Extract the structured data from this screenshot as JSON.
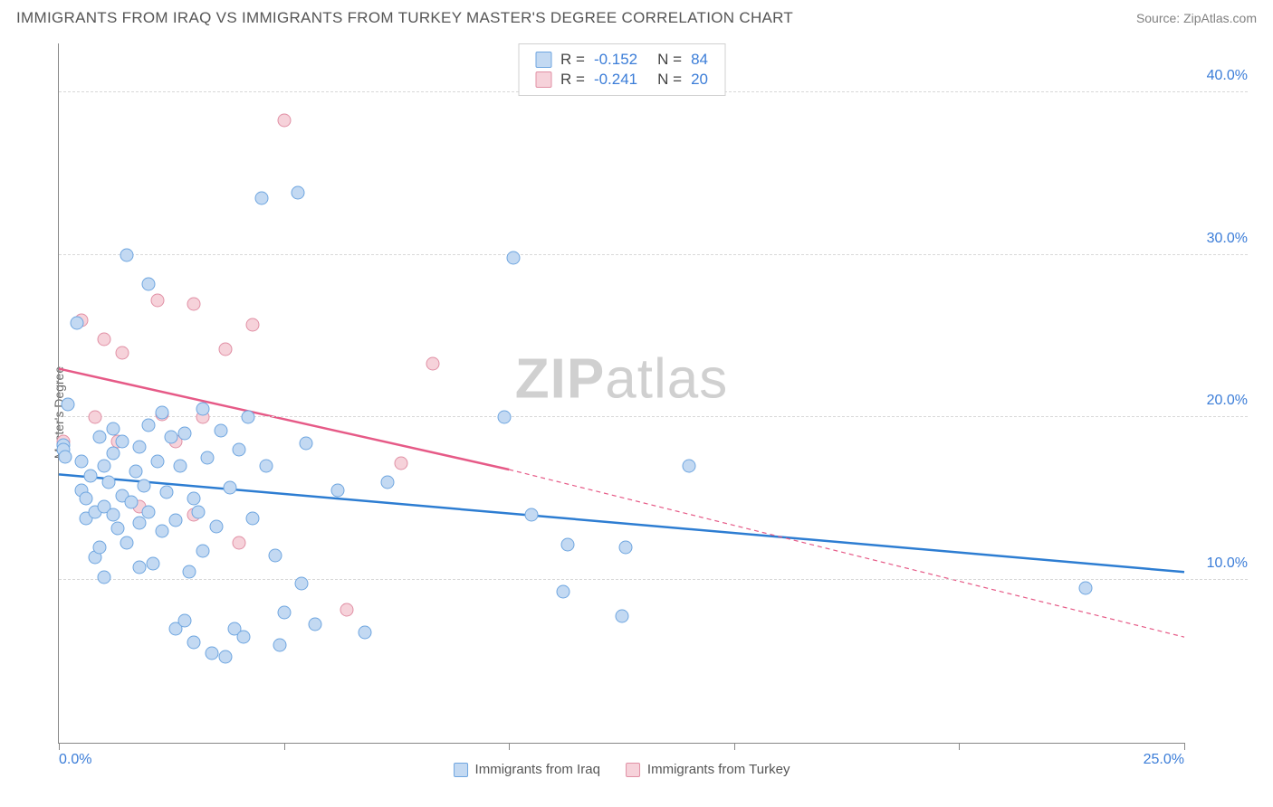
{
  "header": {
    "title": "IMMIGRANTS FROM IRAQ VS IMMIGRANTS FROM TURKEY MASTER'S DEGREE CORRELATION CHART",
    "source": "Source: ZipAtlas.com"
  },
  "ylabel": "Master's Degree",
  "watermark": {
    "zip": "ZIP",
    "atlas": "atlas"
  },
  "colors": {
    "series1_fill": "#c3d9f2",
    "series1_border": "#6fa6e0",
    "series2_fill": "#f6d2da",
    "series2_border": "#e190a5",
    "line1": "#2d7dd2",
    "line2": "#e65a87",
    "grid": "#d8d8d8",
    "axis": "#888888",
    "tick_text": "#3b7dd8"
  },
  "axes": {
    "xlim": [
      0,
      25
    ],
    "ylim": [
      0,
      43
    ],
    "x_ticks": [
      0,
      5,
      10,
      15,
      20,
      25
    ],
    "x_tick_labels": [
      "0.0%",
      "",
      "",
      "",
      "",
      "25.0%"
    ],
    "y_ticks": [
      10,
      20,
      30,
      40
    ],
    "y_tick_labels": [
      "10.0%",
      "20.0%",
      "30.0%",
      "40.0%"
    ]
  },
  "legend_top": {
    "rows": [
      {
        "swatch": "series1",
        "r_label": "R =",
        "r_val": "-0.152",
        "n_label": "N =",
        "n_val": "84"
      },
      {
        "swatch": "series2",
        "r_label": "R =",
        "r_val": "-0.241",
        "n_label": "N =",
        "n_val": "20"
      }
    ]
  },
  "legend_bottom": {
    "items": [
      {
        "swatch": "series1",
        "label": "Immigrants from Iraq"
      },
      {
        "swatch": "series2",
        "label": "Immigrants from Turkey"
      }
    ]
  },
  "trend_lines": {
    "series1": {
      "x1": 0,
      "y1": 16.5,
      "x2": 25,
      "y2": 10.5,
      "dash_from": 25
    },
    "series2": {
      "x1": 0,
      "y1": 23,
      "x2": 10,
      "y2": 16.8,
      "dash_to_x": 25,
      "dash_to_y": 6.5
    }
  },
  "series1_points": [
    {
      "x": 0.1,
      "y": 18.3
    },
    {
      "x": 0.1,
      "y": 18.0
    },
    {
      "x": 0.15,
      "y": 17.6
    },
    {
      "x": 0.2,
      "y": 20.8
    },
    {
      "x": 0.4,
      "y": 25.8
    },
    {
      "x": 0.5,
      "y": 17.3
    },
    {
      "x": 0.5,
      "y": 15.5
    },
    {
      "x": 0.6,
      "y": 15.0
    },
    {
      "x": 0.6,
      "y": 13.8
    },
    {
      "x": 0.7,
      "y": 16.4
    },
    {
      "x": 0.8,
      "y": 11.4
    },
    {
      "x": 0.8,
      "y": 14.2
    },
    {
      "x": 0.9,
      "y": 18.8
    },
    {
      "x": 0.9,
      "y": 12.0
    },
    {
      "x": 1.0,
      "y": 17.0
    },
    {
      "x": 1.0,
      "y": 14.5
    },
    {
      "x": 1.0,
      "y": 10.2
    },
    {
      "x": 1.1,
      "y": 16.0
    },
    {
      "x": 1.2,
      "y": 19.3
    },
    {
      "x": 1.2,
      "y": 14.0
    },
    {
      "x": 1.2,
      "y": 17.8
    },
    {
      "x": 1.3,
      "y": 13.2
    },
    {
      "x": 1.4,
      "y": 15.2
    },
    {
      "x": 1.4,
      "y": 18.5
    },
    {
      "x": 1.5,
      "y": 30.0
    },
    {
      "x": 1.5,
      "y": 12.3
    },
    {
      "x": 1.6,
      "y": 14.8
    },
    {
      "x": 1.7,
      "y": 16.7
    },
    {
      "x": 1.8,
      "y": 18.2
    },
    {
      "x": 1.8,
      "y": 13.5
    },
    {
      "x": 1.8,
      "y": 10.8
    },
    {
      "x": 1.9,
      "y": 15.8
    },
    {
      "x": 2.0,
      "y": 28.2
    },
    {
      "x": 2.0,
      "y": 19.5
    },
    {
      "x": 2.0,
      "y": 14.2
    },
    {
      "x": 2.1,
      "y": 11.0
    },
    {
      "x": 2.2,
      "y": 17.3
    },
    {
      "x": 2.3,
      "y": 13.0
    },
    {
      "x": 2.3,
      "y": 20.3
    },
    {
      "x": 2.4,
      "y": 15.4
    },
    {
      "x": 2.5,
      "y": 18.8
    },
    {
      "x": 2.6,
      "y": 13.7
    },
    {
      "x": 2.6,
      "y": 7.0
    },
    {
      "x": 2.7,
      "y": 17.0
    },
    {
      "x": 2.8,
      "y": 7.5
    },
    {
      "x": 2.8,
      "y": 19.0
    },
    {
      "x": 2.9,
      "y": 10.5
    },
    {
      "x": 3.0,
      "y": 15.0
    },
    {
      "x": 3.0,
      "y": 6.2
    },
    {
      "x": 3.1,
      "y": 14.2
    },
    {
      "x": 3.2,
      "y": 20.5
    },
    {
      "x": 3.2,
      "y": 11.8
    },
    {
      "x": 3.3,
      "y": 17.5
    },
    {
      "x": 3.4,
      "y": 5.5
    },
    {
      "x": 3.5,
      "y": 13.3
    },
    {
      "x": 3.6,
      "y": 19.2
    },
    {
      "x": 3.7,
      "y": 5.3
    },
    {
      "x": 3.8,
      "y": 15.7
    },
    {
      "x": 3.9,
      "y": 7.0
    },
    {
      "x": 4.0,
      "y": 18.0
    },
    {
      "x": 4.1,
      "y": 6.5
    },
    {
      "x": 4.2,
      "y": 20.0
    },
    {
      "x": 4.3,
      "y": 13.8
    },
    {
      "x": 4.5,
      "y": 33.5
    },
    {
      "x": 4.6,
      "y": 17.0
    },
    {
      "x": 4.8,
      "y": 11.5
    },
    {
      "x": 4.9,
      "y": 6.0
    },
    {
      "x": 5.0,
      "y": 8.0
    },
    {
      "x": 5.3,
      "y": 33.8
    },
    {
      "x": 5.4,
      "y": 9.8
    },
    {
      "x": 5.5,
      "y": 18.4
    },
    {
      "x": 5.7,
      "y": 7.3
    },
    {
      "x": 6.2,
      "y": 15.5
    },
    {
      "x": 6.8,
      "y": 6.8
    },
    {
      "x": 7.3,
      "y": 16.0
    },
    {
      "x": 9.9,
      "y": 20.0
    },
    {
      "x": 10.1,
      "y": 29.8
    },
    {
      "x": 10.5,
      "y": 14.0
    },
    {
      "x": 11.2,
      "y": 9.3
    },
    {
      "x": 11.3,
      "y": 12.2
    },
    {
      "x": 12.5,
      "y": 7.8
    },
    {
      "x": 12.6,
      "y": 12.0
    },
    {
      "x": 14.0,
      "y": 17.0
    },
    {
      "x": 22.8,
      "y": 9.5
    }
  ],
  "series2_points": [
    {
      "x": 0.1,
      "y": 18.5
    },
    {
      "x": 0.5,
      "y": 26.0
    },
    {
      "x": 0.8,
      "y": 20.0
    },
    {
      "x": 1.0,
      "y": 24.8
    },
    {
      "x": 1.3,
      "y": 18.5
    },
    {
      "x": 1.4,
      "y": 24.0
    },
    {
      "x": 1.8,
      "y": 14.5
    },
    {
      "x": 2.2,
      "y": 27.2
    },
    {
      "x": 2.3,
      "y": 20.2
    },
    {
      "x": 2.6,
      "y": 18.5
    },
    {
      "x": 3.0,
      "y": 14.0
    },
    {
      "x": 3.0,
      "y": 27.0
    },
    {
      "x": 3.2,
      "y": 20.0
    },
    {
      "x": 3.7,
      "y": 24.2
    },
    {
      "x": 4.0,
      "y": 12.3
    },
    {
      "x": 4.3,
      "y": 25.7
    },
    {
      "x": 5.0,
      "y": 38.3
    },
    {
      "x": 6.4,
      "y": 8.2
    },
    {
      "x": 7.6,
      "y": 17.2
    },
    {
      "x": 8.3,
      "y": 23.3
    }
  ]
}
